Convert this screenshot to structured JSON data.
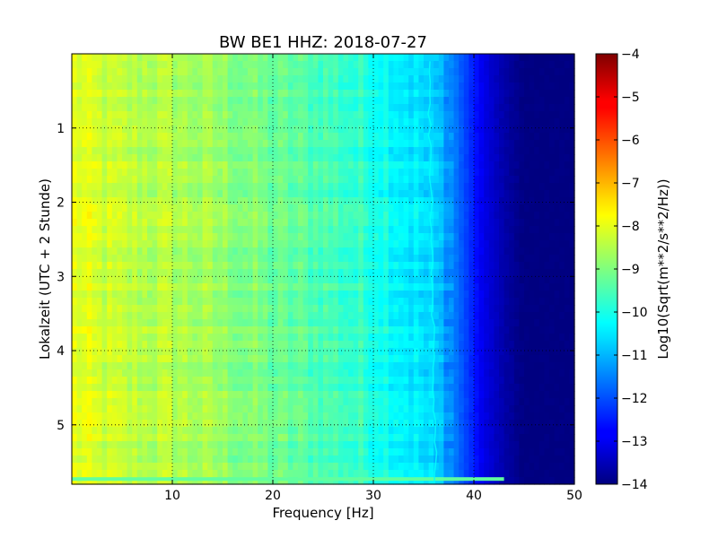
{
  "chart_data": {
    "type": "heatmap",
    "title": "BW BE1 HHZ: 2018-07-27",
    "xlabel": "Frequency [Hz]",
    "ylabel": "Lokalzeit (UTC + 2 Stunde)",
    "xlim": [
      0,
      50
    ],
    "ylim": [
      0,
      5.8
    ],
    "y_inverted": true,
    "x_ticks": [
      10,
      20,
      30,
      40,
      50
    ],
    "y_ticks": [
      1,
      2,
      3,
      4,
      5
    ],
    "grid": true,
    "colormap": "jet",
    "colorbar": {
      "label": "Log10(Sqrt(m**2/s**2/Hz))",
      "min": -14,
      "max": -4,
      "ticks": [
        -4,
        -5,
        -6,
        -7,
        -8,
        -9,
        -10,
        -11,
        -12,
        -13,
        -14
      ]
    },
    "spectrum_profile_hz": [
      0,
      5,
      10,
      15,
      20,
      25,
      30,
      33,
      35,
      37,
      39,
      41,
      43,
      45,
      50
    ],
    "spectrum_profile_log10": [
      -8.0,
      -8.4,
      -8.5,
      -8.8,
      -9.2,
      -9.5,
      -9.9,
      -10.3,
      -10.6,
      -11.0,
      -12.0,
      -13.0,
      -13.6,
      -14.0,
      -14.0
    ],
    "highlight_line": {
      "start_time": 0.1,
      "end_time": 5.8,
      "start_freq_hz": 35.5,
      "end_freq_hz": 36.2,
      "value": -10.2
    },
    "horizontal_band": {
      "time": 5.73,
      "freq_range_hz": [
        0,
        43
      ],
      "value": -9.3
    }
  }
}
